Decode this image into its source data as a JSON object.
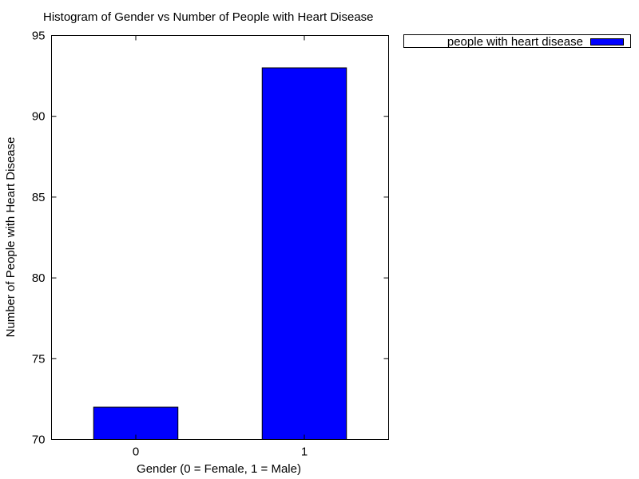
{
  "chart_data": {
    "type": "bar",
    "title": "Histogram of Gender vs Number of People with Heart Disease",
    "xlabel": "Gender (0 = Female, 1 = Male)",
    "ylabel": "Number of People with Heart Disease",
    "categories": [
      "0",
      "1"
    ],
    "series": [
      {
        "name": "people with heart disease",
        "values": [
          72,
          93
        ],
        "color": "#0000ff"
      }
    ],
    "ylim": [
      70,
      95
    ],
    "yticks": [
      70,
      75,
      80,
      85,
      90,
      95
    ],
    "legend_position": "top-right outside plot",
    "grid": false
  }
}
